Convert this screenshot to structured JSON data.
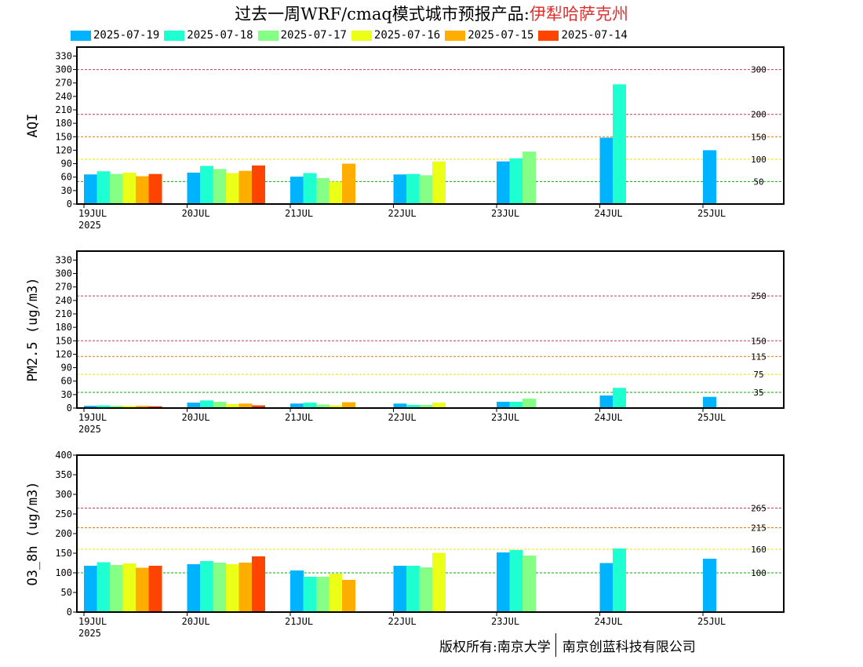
{
  "title": {
    "prefix": "过去一周WRF/cmaq模式城市预报产品:",
    "city": "伊犁哈萨克州"
  },
  "copyright": {
    "left": "版权所有:南京大学",
    "right": "南京创蓝科技有限公司"
  },
  "colors": {
    "frame": "#000000",
    "red_line": "#c8385f",
    "orange_line": "#e07b00",
    "yellow_line": "#f0e000",
    "green_line": "#00b000"
  },
  "series_legend": [
    {
      "name": "2025-07-19",
      "color": "#00b3ff"
    },
    {
      "name": "2025-07-18",
      "color": "#1effd2"
    },
    {
      "name": "2025-07-17",
      "color": "#85ff85"
    },
    {
      "name": "2025-07-16",
      "color": "#ecff17"
    },
    {
      "name": "2025-07-15",
      "color": "#ffae00"
    },
    {
      "name": "2025-07-14",
      "color": "#ff4400"
    }
  ],
  "chart_data": [
    {
      "type": "bar",
      "ylabel": "AQI",
      "categories": [
        "19JUL",
        "20JUL",
        "21JUL",
        "22JUL",
        "23JUL",
        "24JUL",
        "25JUL"
      ],
      "year_label": "2025",
      "ylim": [
        0,
        350
      ],
      "yticks": [
        0,
        30,
        60,
        90,
        120,
        150,
        180,
        210,
        240,
        270,
        300,
        330
      ],
      "thresholds": [
        {
          "value": 300,
          "label": "300",
          "color": "red"
        },
        {
          "value": 200,
          "label": "200",
          "color": "red"
        },
        {
          "value": 150,
          "label": "150",
          "color": "orange"
        },
        {
          "value": 100,
          "label": "100",
          "color": "yellow"
        },
        {
          "value": 50,
          "label": "50",
          "color": "green"
        }
      ],
      "series": [
        {
          "name": "2025-07-19",
          "values": [
            66,
            70,
            61,
            66,
            95,
            148,
            120
          ]
        },
        {
          "name": "2025-07-18",
          "values": [
            73,
            85,
            69,
            67,
            102,
            267,
            null
          ]
        },
        {
          "name": "2025-07-17",
          "values": [
            67,
            78,
            58,
            64,
            117,
            null,
            null
          ]
        },
        {
          "name": "2025-07-16",
          "values": [
            70,
            69,
            50,
            95,
            null,
            null,
            null
          ]
        },
        {
          "name": "2025-07-15",
          "values": [
            62,
            74,
            90,
            null,
            null,
            null,
            null
          ]
        },
        {
          "name": "2025-07-14",
          "values": [
            67,
            86,
            null,
            null,
            null,
            null,
            null
          ]
        }
      ]
    },
    {
      "type": "bar",
      "ylabel": "PM2.5 (ug/m3)",
      "categories": [
        "19JUL",
        "20JUL",
        "21JUL",
        "22JUL",
        "23JUL",
        "24JUL",
        "25JUL"
      ],
      "year_label": "2025",
      "ylim": [
        0,
        350
      ],
      "yticks": [
        0,
        30,
        60,
        90,
        120,
        150,
        180,
        210,
        240,
        270,
        300,
        330
      ],
      "thresholds": [
        {
          "value": 250,
          "label": "250",
          "color": "red"
        },
        {
          "value": 150,
          "label": "150",
          "color": "red"
        },
        {
          "value": 115,
          "label": "115",
          "color": "orange"
        },
        {
          "value": 75,
          "label": "75",
          "color": "yellow"
        },
        {
          "value": 35,
          "label": "35",
          "color": "green"
        }
      ],
      "series": [
        {
          "name": "2025-07-19",
          "values": [
            5,
            12,
            10,
            10,
            14,
            28,
            25
          ]
        },
        {
          "name": "2025-07-18",
          "values": [
            6,
            17,
            12,
            7,
            14,
            45,
            null
          ]
        },
        {
          "name": "2025-07-17",
          "values": [
            5,
            14,
            8,
            7,
            21,
            null,
            null
          ]
        },
        {
          "name": "2025-07-16",
          "values": [
            5,
            9,
            6,
            12,
            null,
            null,
            null
          ]
        },
        {
          "name": "2025-07-15",
          "values": [
            5,
            10,
            13,
            null,
            null,
            null,
            null
          ]
        },
        {
          "name": "2025-07-14",
          "values": [
            4,
            6,
            null,
            null,
            null,
            null,
            null
          ]
        }
      ]
    },
    {
      "type": "bar",
      "ylabel": "O3_8h (ug/m3)",
      "categories": [
        "19JUL",
        "20JUL",
        "21JUL",
        "22JUL",
        "23JUL",
        "24JUL",
        "25JUL"
      ],
      "year_label": "2025",
      "ylim": [
        0,
        400
      ],
      "yticks": [
        0,
        50,
        100,
        150,
        200,
        250,
        300,
        350,
        400
      ],
      "thresholds": [
        {
          "value": 265,
          "label": "265",
          "color": "red"
        },
        {
          "value": 215,
          "label": "215",
          "color": "orange"
        },
        {
          "value": 160,
          "label": "160",
          "color": "yellow"
        },
        {
          "value": 100,
          "label": "100",
          "color": "green"
        }
      ],
      "series": [
        {
          "name": "2025-07-19",
          "values": [
            118,
            122,
            106,
            118,
            152,
            125,
            136
          ]
        },
        {
          "name": "2025-07-18",
          "values": [
            127,
            130,
            90,
            118,
            158,
            162,
            null
          ]
        },
        {
          "name": "2025-07-17",
          "values": [
            120,
            126,
            90,
            114,
            144,
            null,
            null
          ]
        },
        {
          "name": "2025-07-16",
          "values": [
            124,
            122,
            98,
            151,
            null,
            null,
            null
          ]
        },
        {
          "name": "2025-07-15",
          "values": [
            113,
            126,
            82,
            null,
            null,
            null,
            null
          ]
        },
        {
          "name": "2025-07-14",
          "values": [
            118,
            142,
            null,
            null,
            null,
            null,
            null
          ]
        }
      ]
    }
  ]
}
